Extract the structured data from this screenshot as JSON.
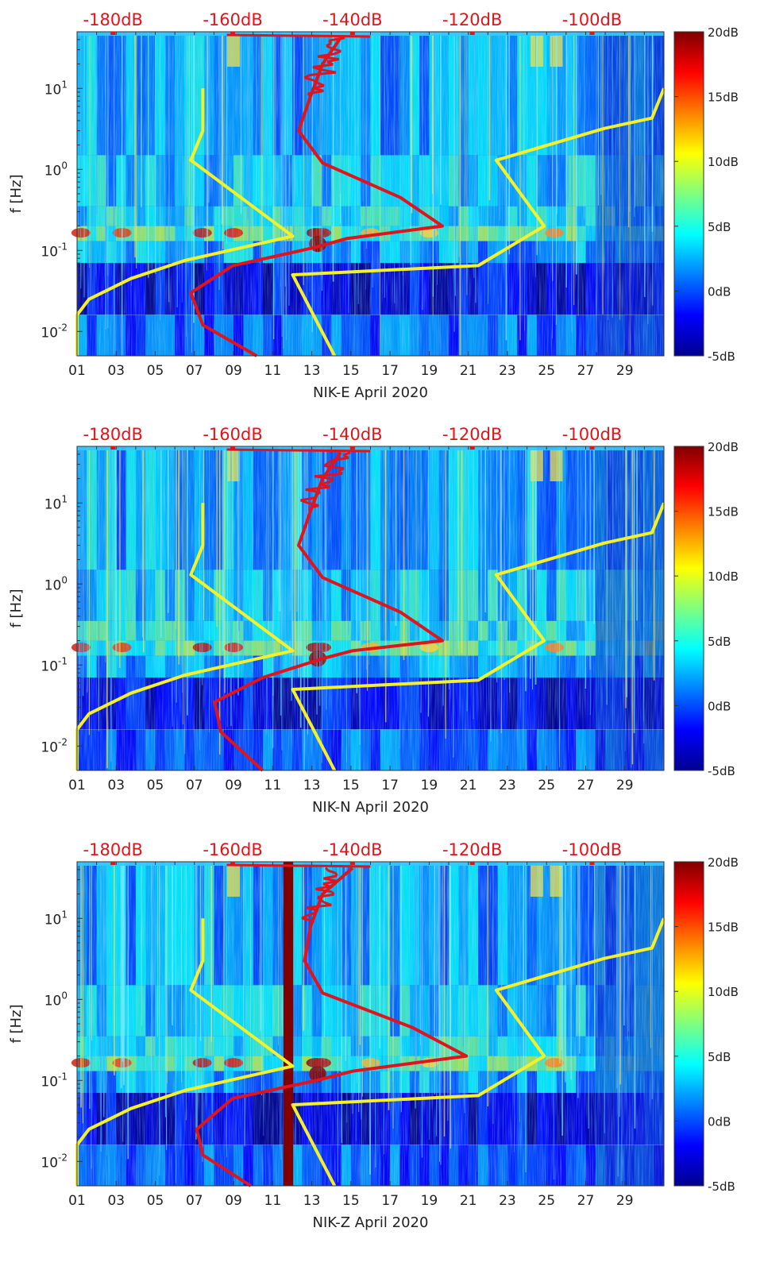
{
  "chart_data": [
    {
      "type": "heatmap",
      "title": "",
      "xlabel": "NIK-E April 2020",
      "ylabel": "f [Hz]",
      "x_ticks": [
        "01",
        "03",
        "05",
        "07",
        "09",
        "11",
        "13",
        "15",
        "17",
        "19",
        "21",
        "23",
        "25",
        "27",
        "29"
      ],
      "y_ticks": [
        "10^-2",
        "10^-1",
        "10^0",
        "10^1"
      ],
      "y_scale": "log",
      "ylim": [
        0.005,
        50
      ],
      "xlim": [
        1,
        31
      ],
      "top_axis_ticks": [
        "-180dB",
        "-160dB",
        "-140dB",
        "-120dB",
        "-100dB"
      ],
      "top_axis_range_db": [
        -186,
        -88
      ],
      "colorbar": {
        "ticks": [
          "20dB",
          "15dB",
          "10dB",
          "5dB",
          "0dB",
          "-5dB"
        ],
        "range_db": [
          -5,
          20
        ],
        "colormap": "jet"
      },
      "series": [
        {
          "name": "noise model (yellow)",
          "color": "#f4f02a",
          "points_db": [
            [
              -186,
              0.005
            ],
            [
              -186,
              0.016
            ],
            [
              -184,
              0.025
            ],
            [
              -177,
              0.045
            ],
            [
              -168,
              0.075
            ],
            [
              -150,
              0.15
            ],
            [
              -167,
              1.3
            ],
            [
              -165,
              3
            ],
            [
              -165,
              10
            ]
          ]
        },
        {
          "name": "noise model (yellow, right)",
          "color": "#f4f02a",
          "points_db": [
            [
              -143,
              0.005
            ],
            [
              -150,
              0.05
            ],
            [
              -119,
              0.065
            ],
            [
              -108,
              0.2
            ],
            [
              -116,
              1.3
            ],
            [
              -98,
              3.2
            ],
            [
              -90,
              4.3
            ],
            [
              -88,
              10
            ]
          ]
        },
        {
          "name": "median PSD (red)",
          "color": "#e0141a",
          "points_db": [
            [
              -156,
              0.005
            ],
            [
              -165,
              0.012
            ],
            [
              -167,
              0.03
            ],
            [
              -160,
              0.065
            ],
            [
              -146,
              0.11
            ],
            [
              -141,
              0.14
            ],
            [
              -125,
              0.2
            ],
            [
              -132,
              0.45
            ],
            [
              -145,
              1.2
            ],
            [
              -149,
              3
            ],
            [
              -147,
              8
            ],
            [
              -145,
              20
            ],
            [
              -142,
              42
            ]
          ]
        }
      ],
      "annotations": []
    },
    {
      "type": "heatmap",
      "title": "",
      "xlabel": "NIK-N April 2020",
      "ylabel": "f [Hz]",
      "x_ticks": [
        "01",
        "03",
        "05",
        "07",
        "09",
        "11",
        "13",
        "15",
        "17",
        "19",
        "21",
        "23",
        "25",
        "27",
        "29"
      ],
      "y_ticks": [
        "10^-2",
        "10^-1",
        "10^0",
        "10^1"
      ],
      "y_scale": "log",
      "ylim": [
        0.005,
        50
      ],
      "xlim": [
        1,
        31
      ],
      "top_axis_ticks": [
        "-180dB",
        "-160dB",
        "-140dB",
        "-120dB",
        "-100dB"
      ],
      "top_axis_range_db": [
        -186,
        -88
      ],
      "colorbar": {
        "ticks": [
          "20dB",
          "15dB",
          "10dB",
          "5dB",
          "0dB",
          "-5dB"
        ],
        "range_db": [
          -5,
          20
        ],
        "colormap": "jet"
      },
      "series": [
        {
          "name": "noise model (yellow)",
          "color": "#f4f02a",
          "points_db": [
            [
              -186,
              0.005
            ],
            [
              -186,
              0.016
            ],
            [
              -184,
              0.025
            ],
            [
              -177,
              0.045
            ],
            [
              -168,
              0.075
            ],
            [
              -150,
              0.15
            ],
            [
              -167,
              1.3
            ],
            [
              -165,
              3
            ],
            [
              -165,
              10
            ]
          ]
        },
        {
          "name": "noise model (yellow, right)",
          "color": "#f4f02a",
          "points_db": [
            [
              -143,
              0.005
            ],
            [
              -150,
              0.05
            ],
            [
              -119,
              0.065
            ],
            [
              -108,
              0.2
            ],
            [
              -116,
              1.3
            ],
            [
              -98,
              3.2
            ],
            [
              -90,
              4.3
            ],
            [
              -88,
              10
            ]
          ]
        },
        {
          "name": "median PSD (red)",
          "color": "#e0141a",
          "points_db": [
            [
              -155,
              0.005
            ],
            [
              -162,
              0.015
            ],
            [
              -163,
              0.035
            ],
            [
              -155,
              0.07
            ],
            [
              -145,
              0.12
            ],
            [
              -140,
              0.15
            ],
            [
              -125,
              0.2
            ],
            [
              -132,
              0.45
            ],
            [
              -145,
              1.2
            ],
            [
              -149,
              3
            ],
            [
              -147,
              8
            ],
            [
              -145,
              20
            ],
            [
              -142,
              42
            ]
          ]
        }
      ],
      "annotations": []
    },
    {
      "type": "heatmap",
      "title": "",
      "xlabel": "NIK-Z April 2020",
      "ylabel": "f [Hz]",
      "x_ticks": [
        "01",
        "03",
        "05",
        "07",
        "09",
        "11",
        "13",
        "15",
        "17",
        "19",
        "21",
        "23",
        "25",
        "27",
        "29"
      ],
      "y_ticks": [
        "10^-2",
        "10^-1",
        "10^0",
        "10^1"
      ],
      "y_scale": "log",
      "ylim": [
        0.005,
        50
      ],
      "xlim": [
        1,
        31
      ],
      "top_axis_ticks": [
        "-180dB",
        "-160dB",
        "-140dB",
        "-120dB",
        "-100dB"
      ],
      "top_axis_range_db": [
        -186,
        -88
      ],
      "colorbar": {
        "ticks": [
          "20dB",
          "15dB",
          "10dB",
          "5dB",
          "0dB",
          "-5dB"
        ],
        "range_db": [
          -5,
          20
        ],
        "colormap": "jet"
      },
      "series": [
        {
          "name": "noise model (yellow)",
          "color": "#f4f02a",
          "points_db": [
            [
              -186,
              0.005
            ],
            [
              -186,
              0.016
            ],
            [
              -184,
              0.025
            ],
            [
              -177,
              0.045
            ],
            [
              -168,
              0.075
            ],
            [
              -150,
              0.15
            ],
            [
              -167,
              1.3
            ],
            [
              -165,
              3
            ],
            [
              -165,
              10
            ]
          ]
        },
        {
          "name": "noise model (yellow, right)",
          "color": "#f4f02a",
          "points_db": [
            [
              -143,
              0.005
            ],
            [
              -150,
              0.05
            ],
            [
              -119,
              0.065
            ],
            [
              -108,
              0.2
            ],
            [
              -116,
              1.3
            ],
            [
              -98,
              3.2
            ],
            [
              -90,
              4.3
            ],
            [
              -88,
              10
            ]
          ]
        },
        {
          "name": "median PSD (red)",
          "color": "#e0141a",
          "points_db": [
            [
              -157,
              0.005
            ],
            [
              -165,
              0.012
            ],
            [
              -166,
              0.025
            ],
            [
              -160,
              0.06
            ],
            [
              -146,
              0.1
            ],
            [
              -140,
              0.13
            ],
            [
              -121,
              0.2
            ],
            [
              -130,
              0.45
            ],
            [
              -145,
              1.2
            ],
            [
              -148,
              3
            ],
            [
              -147,
              8
            ],
            [
              -145,
              20
            ],
            [
              -140,
              42
            ]
          ]
        }
      ],
      "annotations": [
        {
          "text": "",
          "kind": "dark red vertical band (data gap) near day 11.8"
        }
      ]
    }
  ]
}
